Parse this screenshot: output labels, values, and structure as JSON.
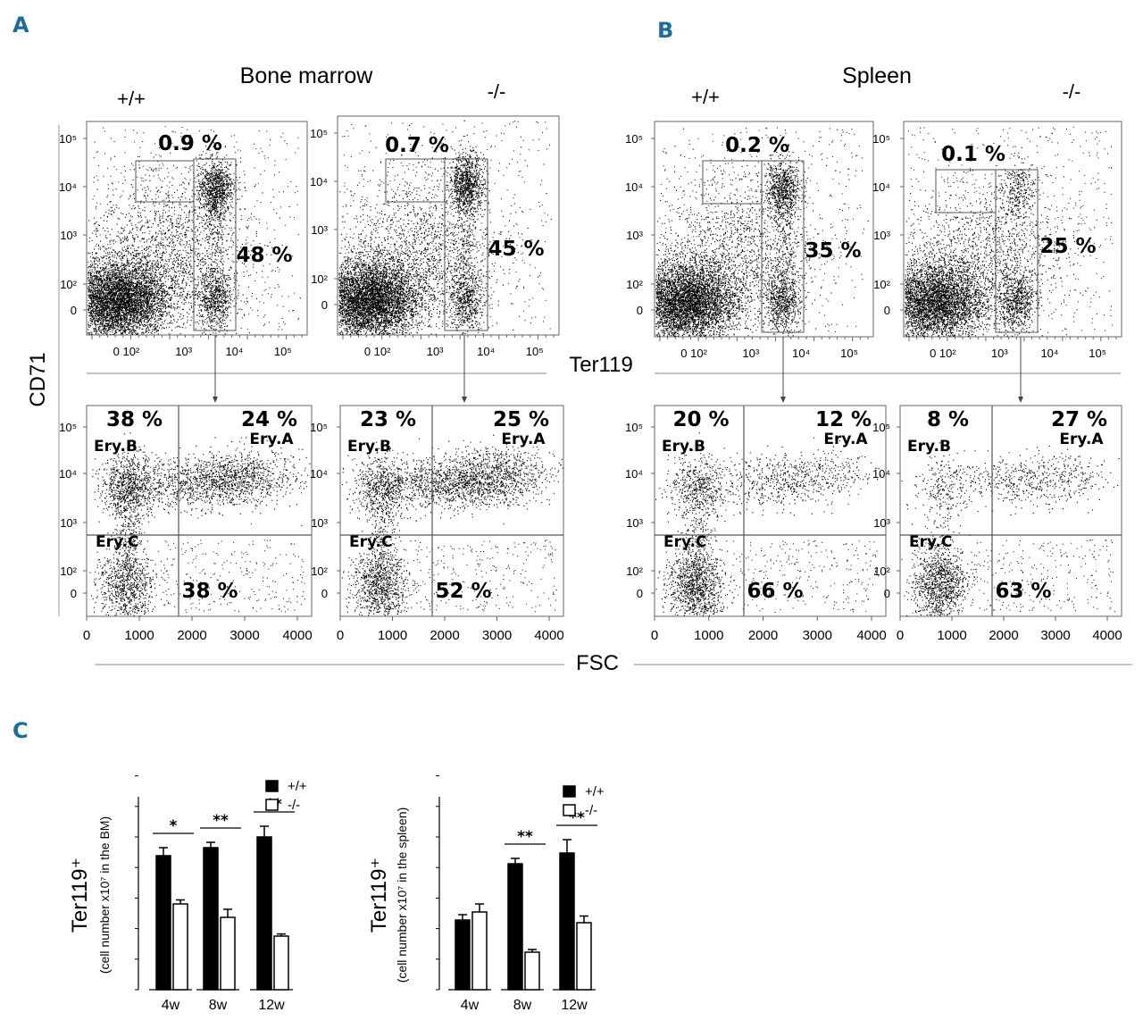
{
  "panel_labels": [
    "A",
    "B",
    "C"
  ],
  "section_titles": {
    "A": "Bone marrow",
    "B": "Spleen"
  },
  "genotypes": {
    "wt": "+/+",
    "ko": "-/-"
  },
  "axis_titles": {
    "cd71": "CD71",
    "ter119": "Ter119",
    "fsc": "FSC"
  },
  "colors": {
    "label_blue": "#1a6e9c",
    "dots": "#000000",
    "gate": "#555555"
  },
  "flow_ticks": {
    "log_y": [
      "10⁵",
      "10⁴",
      "10³",
      "10²",
      "0"
    ],
    "log_x": [
      "0 10²",
      "10³",
      "10⁴",
      "10⁵"
    ],
    "fsc_x": [
      "0",
      "1000",
      "2000",
      "3000",
      "4000"
    ]
  },
  "gate_names": {
    "a": "Ery.A",
    "b": "Ery.B",
    "c": "Ery.C"
  },
  "flow_panels": [
    {
      "id": "bm-wt",
      "tissue": "Bone marrow",
      "genotype": "+/+",
      "cd71_high_gate": "0.9 %",
      "ter119_gate": "48 %",
      "ery_b": "38 %",
      "ery_a": "24 %",
      "ery_c": "38 %"
    },
    {
      "id": "bm-ko",
      "tissue": "Bone marrow",
      "genotype": "-/-",
      "cd71_high_gate": "0.7 %",
      "ter119_gate": "45 %",
      "ery_b": "23 %",
      "ery_a": "25 %",
      "ery_c": "52 %"
    },
    {
      "id": "sp-wt",
      "tissue": "Spleen",
      "genotype": "+/+",
      "cd71_high_gate": "0.2 %",
      "ter119_gate": "35 %",
      "ery_b": "20 %",
      "ery_a": "12 %",
      "ery_c": "66 %"
    },
    {
      "id": "sp-ko",
      "tissue": "Spleen",
      "genotype": "-/-",
      "cd71_high_gate": "0.1 %",
      "ter119_gate": "25 %",
      "ery_b": "8 %",
      "ery_a": "27 %",
      "ery_c": "63 %"
    }
  ],
  "chart_data": [
    {
      "type": "bar",
      "title": "",
      "ylabel": "Ter119⁺",
      "ylabel_sub": "(cell number x10⁷ in the BM)",
      "xlabel": "",
      "categories": [
        "4w",
        "8w",
        "12w"
      ],
      "ylim": [
        0,
        8
      ],
      "legend_position": "top-right",
      "series": [
        {
          "name": "+/+",
          "fill": "#000000",
          "values": [
            5.0,
            5.3,
            5.7
          ],
          "errors": [
            0.3,
            0.2,
            0.4
          ]
        },
        {
          "name": "-/-",
          "fill": "#ffffff",
          "values": [
            3.2,
            2.7,
            2.0
          ],
          "errors": [
            0.15,
            0.3,
            0.08
          ]
        }
      ],
      "significance": [
        "*",
        "**",
        "**"
      ]
    },
    {
      "type": "bar",
      "title": "",
      "ylabel": "Ter119⁺",
      "ylabel_sub": "(cell number x10⁷ in the spleen)",
      "xlabel": "",
      "categories": [
        "4w",
        "8w",
        "12w"
      ],
      "ylim": [
        0,
        8
      ],
      "legend_position": "top-right",
      "series": [
        {
          "name": "+/+",
          "fill": "#000000",
          "values": [
            2.6,
            4.7,
            5.1
          ],
          "errors": [
            0.2,
            0.2,
            0.5
          ]
        },
        {
          "name": "-/-",
          "fill": "#ffffff",
          "values": [
            2.9,
            1.4,
            2.5
          ],
          "errors": [
            0.3,
            0.1,
            0.25
          ]
        }
      ],
      "significance": [
        "",
        "**",
        "**"
      ]
    }
  ]
}
